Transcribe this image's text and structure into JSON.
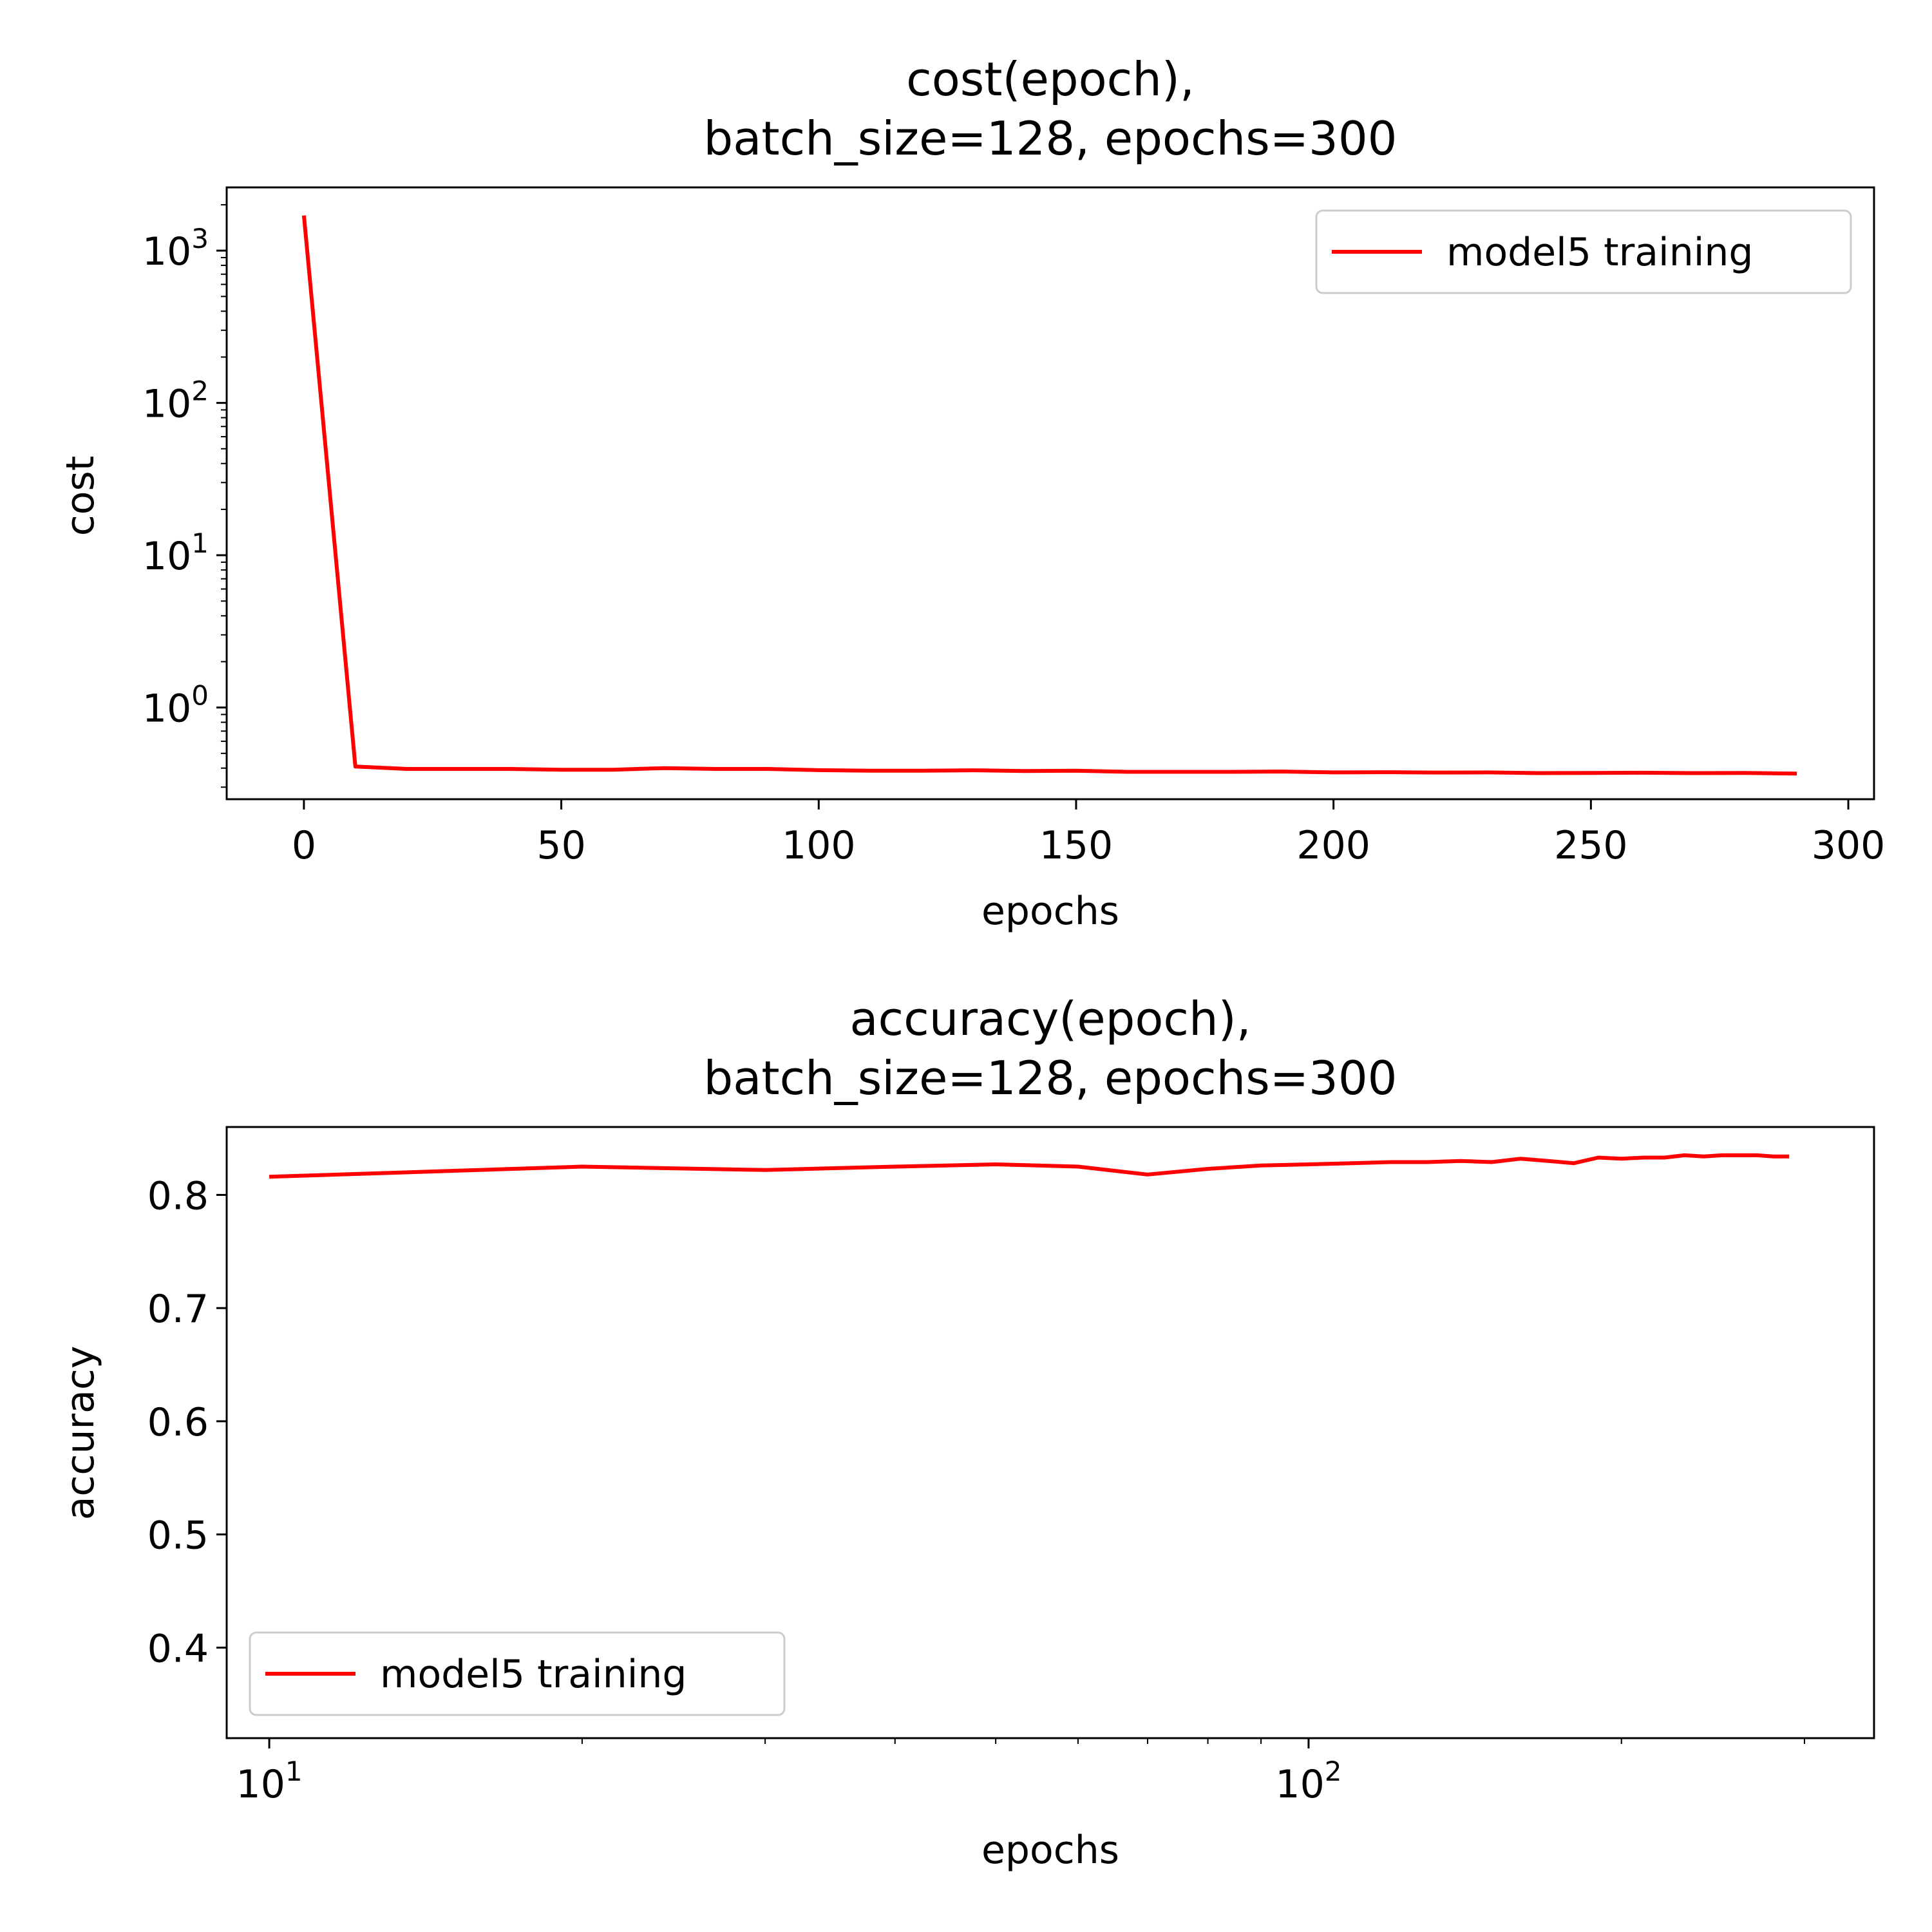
{
  "line_color": "#ff0000",
  "chart_data": [
    {
      "type": "line",
      "title": "cost(epoch),\nbatch_size=128, epochs=300",
      "xlabel": "epochs",
      "ylabel": "cost",
      "xscale": "linear",
      "yscale": "log",
      "xlim": [
        -15,
        305
      ],
      "ylim": [
        0.25,
        2600
      ],
      "xticks": [
        0,
        50,
        100,
        150,
        200,
        250,
        300
      ],
      "yticks": [
        {
          "value": 1,
          "base": "10",
          "exp": "0"
        },
        {
          "value": 10,
          "base": "10",
          "exp": "1"
        },
        {
          "value": 100,
          "base": "10",
          "exp": "2"
        },
        {
          "value": 1000,
          "base": "10",
          "exp": "3"
        }
      ],
      "legend": {
        "position": "upper right"
      },
      "series": [
        {
          "name": "model5 training",
          "color": "#ff0000",
          "x": [
            0,
            10,
            20,
            30,
            40,
            50,
            60,
            70,
            80,
            90,
            100,
            110,
            120,
            130,
            140,
            150,
            160,
            170,
            180,
            190,
            200,
            210,
            220,
            230,
            240,
            250,
            260,
            270,
            280,
            290
          ],
          "y": [
            1700,
            0.41,
            0.395,
            0.395,
            0.395,
            0.39,
            0.39,
            0.4,
            0.395,
            0.395,
            0.388,
            0.385,
            0.385,
            0.387,
            0.383,
            0.385,
            0.378,
            0.378,
            0.378,
            0.38,
            0.375,
            0.376,
            0.374,
            0.375,
            0.371,
            0.372,
            0.373,
            0.371,
            0.372,
            0.368
          ]
        }
      ]
    },
    {
      "type": "line",
      "title": "accuracy(epoch),\nbatch_size=128, epochs=300",
      "xlabel": "epochs",
      "ylabel": "accuracy",
      "xscale": "log",
      "yscale": "linear",
      "xlim": [
        9.1,
        350
      ],
      "ylim": [
        0.32,
        0.86
      ],
      "xticks": [
        {
          "value": 10,
          "base": "10",
          "exp": "1"
        },
        {
          "value": 100,
          "base": "10",
          "exp": "2"
        }
      ],
      "yticks": [
        0.4,
        0.5,
        0.6,
        0.7,
        0.8
      ],
      "legend": {
        "position": "lower left"
      },
      "series": [
        {
          "name": "model5 training",
          "color": "#ff0000",
          "x": [
            10,
            20,
            30,
            40,
            50,
            60,
            70,
            80,
            90,
            100,
            110,
            120,
            130,
            140,
            150,
            160,
            170,
            180,
            190,
            200,
            210,
            220,
            230,
            240,
            250,
            260,
            270,
            280,
            290
          ],
          "y": [
            0.816,
            0.825,
            0.822,
            0.825,
            0.827,
            0.825,
            0.818,
            0.823,
            0.826,
            0.827,
            0.828,
            0.829,
            0.829,
            0.83,
            0.829,
            0.832,
            0.83,
            0.828,
            0.833,
            0.832,
            0.833,
            0.833,
            0.835,
            0.834,
            0.835,
            0.835,
            0.835,
            0.834,
            0.834
          ]
        }
      ]
    }
  ]
}
